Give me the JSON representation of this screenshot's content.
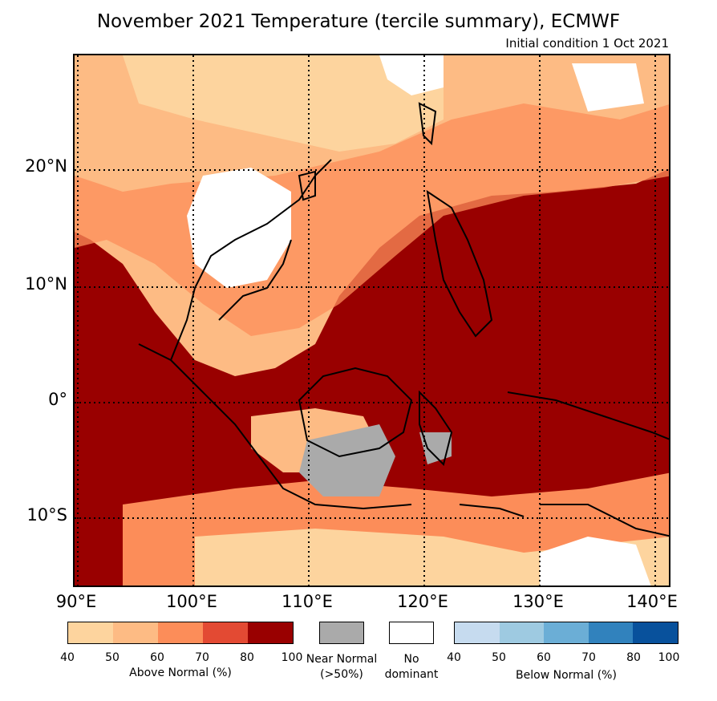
{
  "title": "November 2021 Temperature (tercile summary), ECMWF",
  "subtitle": "Initial condition 1 Oct 2021",
  "lat_labels": [
    "20°N",
    "10°N",
    "0°",
    "10°S"
  ],
  "lon_labels": [
    "90°E",
    "100°E",
    "110°E",
    "120°E",
    "130°E",
    "140°E"
  ],
  "legend": {
    "above": {
      "caption": "Above Normal (%)",
      "ticks": [
        "40",
        "50",
        "60",
        "70",
        "80",
        "100"
      ],
      "colors": [
        "#fdd49e",
        "#fdbb84",
        "#fc8d59",
        "#e34a33",
        "#990000"
      ]
    },
    "near": {
      "caption": "Near Normal",
      "caption2": "(>50%)",
      "color": "#aaaaaa"
    },
    "none": {
      "caption": "No",
      "caption2": "dominant",
      "color": "#ffffff"
    },
    "below": {
      "caption": "Below Normal (%)",
      "ticks": [
        "40",
        "50",
        "60",
        "70",
        "80",
        "100"
      ],
      "colors": [
        "#c6dbef",
        "#9ecae1",
        "#6baed6",
        "#3182bd",
        "#08519c"
      ]
    }
  }
}
